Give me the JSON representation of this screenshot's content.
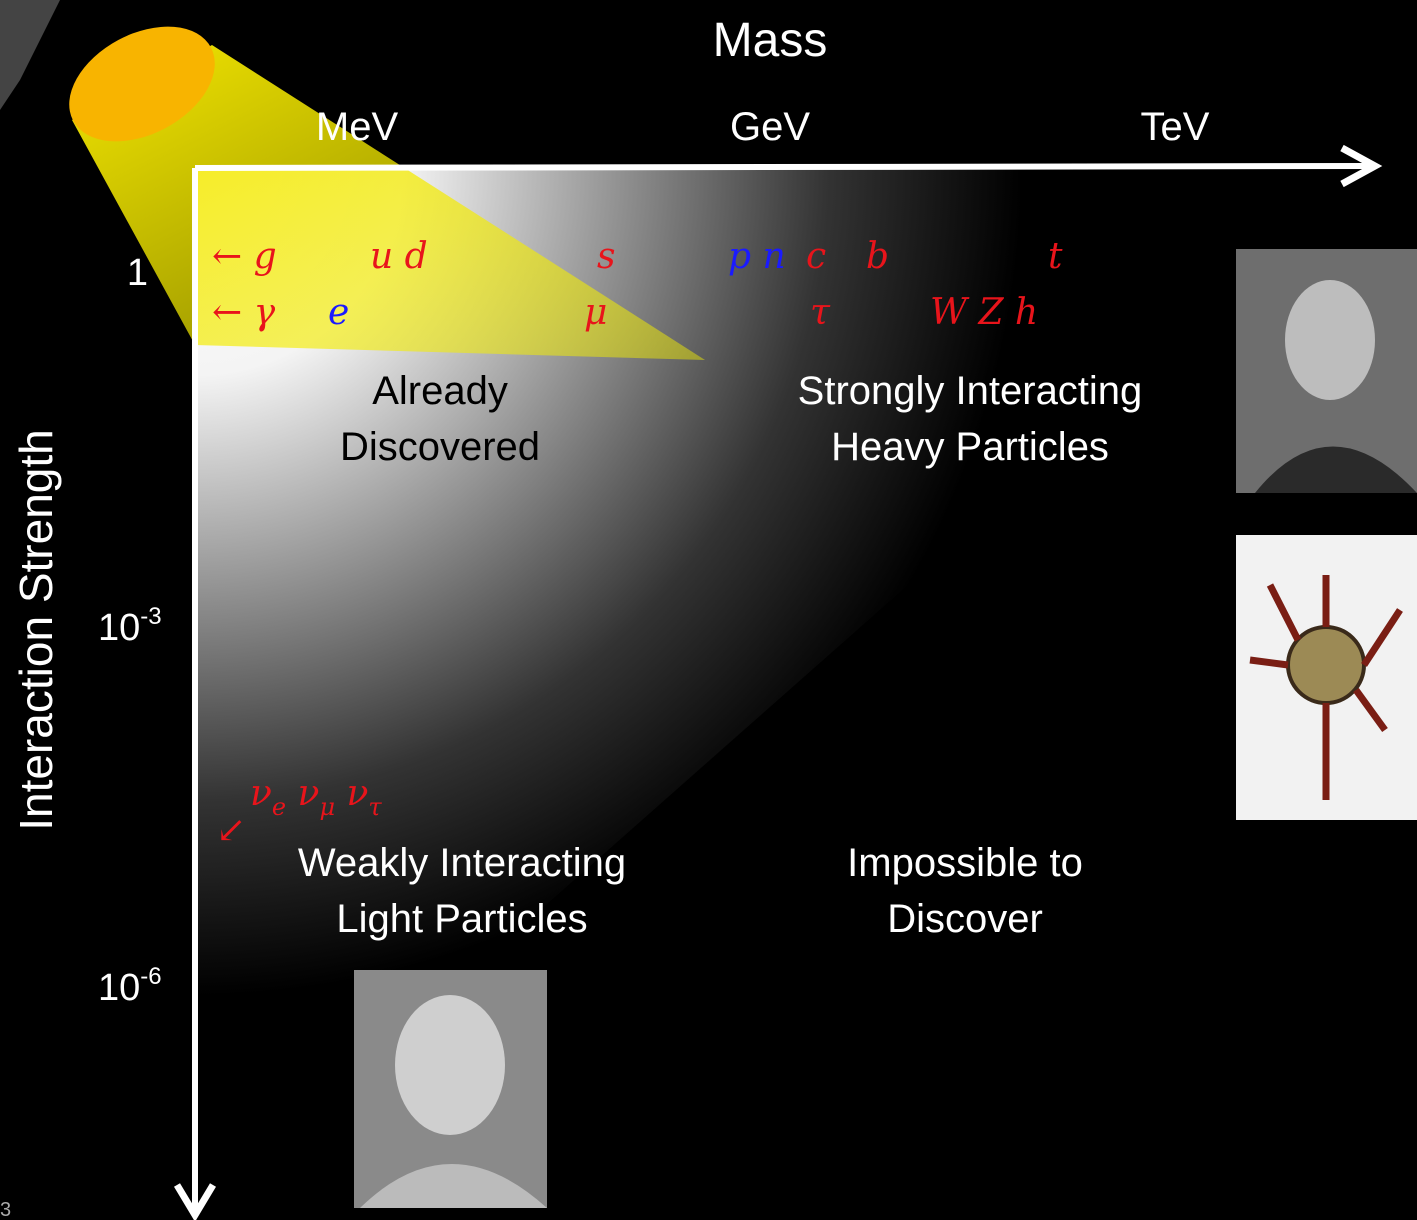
{
  "axes": {
    "x_title": "Mass",
    "x_labels": [
      "MeV",
      "GeV",
      "TeV"
    ],
    "y_title": "Interaction Strength",
    "y_labels": [
      {
        "base": "1"
      },
      {
        "base": "10",
        "exponent": "-3"
      },
      {
        "base": "10",
        "exponent": "-6"
      }
    ]
  },
  "particles": {
    "row1": [
      "← g",
      "u d",
      "s",
      "p n",
      "c",
      "b",
      "t"
    ],
    "row2": [
      "← γ",
      "e",
      "μ",
      "τ",
      "W Z h"
    ],
    "neutrinos": [
      {
        "symbol": "ν",
        "sub": "e"
      },
      {
        "symbol": "ν",
        "sub": "μ"
      },
      {
        "symbol": "ν",
        "sub": "τ"
      }
    ],
    "neutrino_arrow": "↙"
  },
  "regions": {
    "already": [
      "Already",
      "Discovered"
    ],
    "strong": [
      "Strongly Interacting",
      "Heavy Particles"
    ],
    "weak": [
      "Weakly Interacting",
      "Light Particles"
    ],
    "impossible": [
      "Impossible to",
      "Discover"
    ]
  },
  "page_number": "3"
}
